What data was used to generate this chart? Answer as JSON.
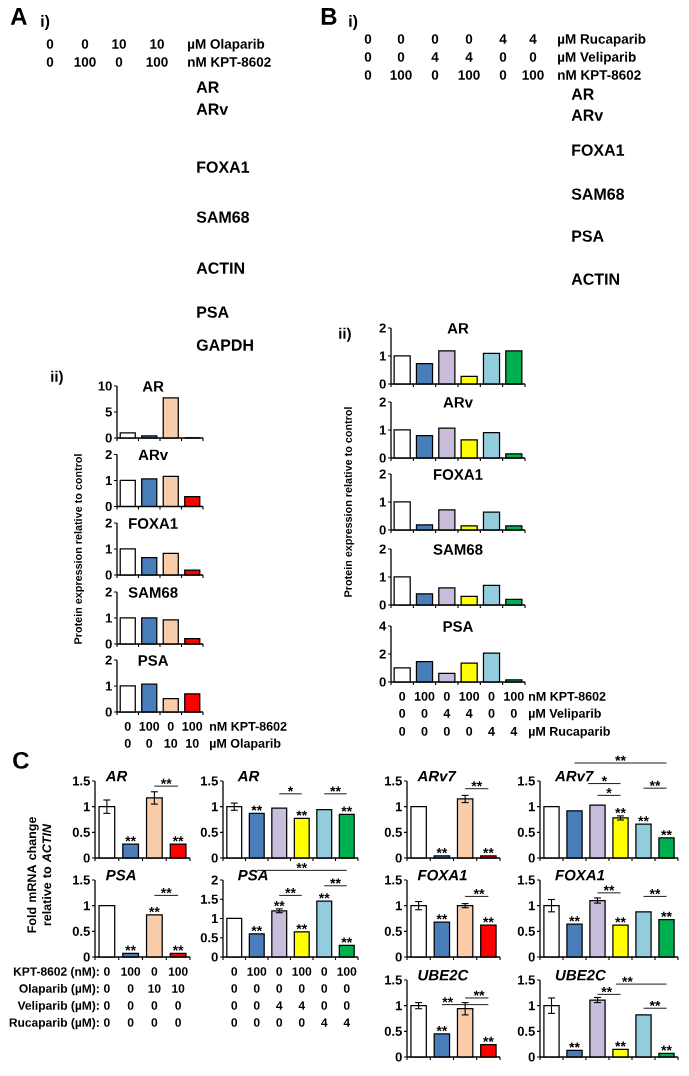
{
  "chart_data": [
    {
      "type": "other",
      "title": "i)",
      "annotations": [
        "A",
        "AR",
        "ARv",
        "FOXA1",
        "SAM68",
        "ACTIN",
        "PSA",
        "GAPDH",
        "µM Olaparib",
        "0",
        "0",
        "10",
        "10",
        "nM KPT-8602",
        "0",
        "100",
        "0",
        "100"
      ]
    },
    {
      "type": "other",
      "title": "i)",
      "annotations": [
        "B",
        "AR",
        "ARv",
        "FOXA1",
        "SAM68",
        "PSA",
        "ACTIN",
        "µM Rucaparib",
        "0",
        "0",
        "0",
        "0",
        "4",
        "4",
        "µM Veliparib",
        "0",
        "0",
        "4",
        "4",
        "0",
        "0",
        "nM KPT-8602",
        "0",
        "100",
        "0",
        "100",
        "0",
        "100"
      ]
    },
    {
      "type": "bar",
      "title": "AR",
      "annotations": [
        "ii)"
      ],
      "categories": [
        null,
        null,
        null,
        null
      ],
      "values": [
        1,
        0.4,
        7.7,
        0
      ],
      "colors": [
        "#ffffff",
        "#4a7ebb",
        "#facdaa",
        "#ff0000"
      ],
      "ylim": [
        0,
        10
      ],
      "yticks": [
        0,
        5,
        10
      ]
    },
    {
      "type": "bar",
      "title": "ARv",
      "categories": [
        null,
        null,
        null,
        null
      ],
      "values": [
        1,
        1.06,
        1.16,
        0.38
      ],
      "colors": [
        "#ffffff",
        "#4a7ebb",
        "#facdaa",
        "#ff0000"
      ],
      "ylim": [
        0,
        2
      ],
      "yticks": [
        0,
        1,
        2
      ]
    },
    {
      "type": "bar",
      "title": "FOXA1",
      "ylabel": "Protein expression relative to control",
      "categories": [
        null,
        null,
        null,
        null
      ],
      "values": [
        1,
        0.67,
        0.83,
        0.19
      ],
      "colors": [
        "#ffffff",
        "#4a7ebb",
        "#facdaa",
        "#ff0000"
      ],
      "ylim": [
        0,
        2
      ],
      "yticks": [
        0,
        1,
        2
      ]
    },
    {
      "type": "bar",
      "title": "SAM68",
      "categories": [
        null,
        null,
        null,
        null
      ],
      "values": [
        1,
        1,
        0.93,
        0.21
      ],
      "colors": [
        "#ffffff",
        "#4a7ebb",
        "#facdaa",
        "#ff0000"
      ],
      "ylim": [
        0,
        2
      ],
      "yticks": [
        0,
        1,
        2
      ]
    },
    {
      "type": "bar",
      "title": "PSA",
      "categories": [
        null,
        null,
        null,
        null
      ],
      "values": [
        1,
        1.07,
        0.51,
        0.7
      ],
      "colors": [
        "#ffffff",
        "#4a7ebb",
        "#facdaa",
        "#ff0000"
      ],
      "ylim": [
        0,
        2
      ],
      "yticks": [
        0,
        1,
        2
      ]
    },
    {
      "type": "other",
      "annotations": [
        "nM KPT-8602",
        "0",
        "100",
        "0",
        "100",
        "µM Olaparib",
        "0",
        "0",
        "10",
        "10"
      ]
    },
    {
      "type": "bar",
      "title": "AR",
      "annotations": [
        "ii)"
      ],
      "categories": [
        null,
        null,
        null,
        null,
        null,
        null
      ],
      "values": [
        1,
        0.73,
        1.18,
        0.27,
        1.09,
        1.18
      ],
      "colors": [
        "#ffffff",
        "#4a7ebb",
        "#c8bedb",
        "#ffff00",
        "#93cddd",
        "#00b050"
      ],
      "ylim": [
        0,
        2
      ],
      "yticks": [
        0,
        1,
        2
      ]
    },
    {
      "type": "bar",
      "title": "ARv",
      "categories": [
        null,
        null,
        null,
        null,
        null,
        null
      ],
      "values": [
        1,
        0.8,
        1.07,
        0.65,
        0.91,
        0.15
      ],
      "colors": [
        "#ffffff",
        "#4a7ebb",
        "#c8bedb",
        "#ffff00",
        "#93cddd",
        "#00b050"
      ],
      "ylim": [
        0,
        2
      ],
      "yticks": [
        0,
        1,
        2
      ]
    },
    {
      "type": "bar",
      "title": "FOXA1",
      "ylabel": "Protein expression relative to control",
      "categories": [
        null,
        null,
        null,
        null,
        null,
        null
      ],
      "values": [
        1,
        0.18,
        0.72,
        0.15,
        0.64,
        0.15
      ],
      "colors": [
        "#ffffff",
        "#4a7ebb",
        "#c8bedb",
        "#ffff00",
        "#93cddd",
        "#00b050"
      ],
      "ylim": [
        0,
        2
      ],
      "yticks": [
        0,
        1,
        2
      ]
    },
    {
      "type": "bar",
      "title": "SAM68",
      "categories": [
        null,
        null,
        null,
        null,
        null,
        null
      ],
      "values": [
        1,
        0.4,
        0.61,
        0.31,
        0.7,
        0.2
      ],
      "colors": [
        "#ffffff",
        "#4a7ebb",
        "#c8bedb",
        "#ffff00",
        "#93cddd",
        "#00b050"
      ],
      "ylim": [
        0,
        2
      ],
      "yticks": [
        0,
        1,
        2
      ]
    },
    {
      "type": "bar",
      "title": "PSA",
      "categories": [
        null,
        null,
        null,
        null,
        null,
        null
      ],
      "values": [
        1,
        1.45,
        0.62,
        1.35,
        2.07,
        0.15
      ],
      "colors": [
        "#ffffff",
        "#4a7ebb",
        "#c8bedb",
        "#ffff00",
        "#93cddd",
        "#00b050"
      ],
      "ylim": [
        0,
        4
      ],
      "yticks": [
        0,
        2,
        4
      ]
    },
    {
      "type": "other",
      "annotations": [
        "nM KPT-8602",
        "0",
        "100",
        "0",
        "100",
        "0",
        "100",
        "µM Veliparib",
        "0",
        "0",
        "4",
        "4",
        "0",
        "0",
        "µM Rucaparib",
        "0",
        "0",
        "0",
        "0",
        "4",
        "4"
      ]
    },
    {
      "type": "bar",
      "title": "AR",
      "ylabel": "Fold mRNA change relative to *ACTIN*",
      "annotations": [
        "C",
        "**"
      ],
      "categories": [
        null,
        null,
        null,
        null
      ],
      "values": [
        1,
        0.27,
        1.17,
        0.27
      ],
      "errors": [
        0.13,
        null,
        0.12,
        null
      ],
      "value_labels": [
        null,
        "**",
        null,
        "**"
      ],
      "colors": [
        "#ffffff",
        "#4a7ebb",
        "#facdaa",
        "#ff0000"
      ],
      "ylim": [
        0,
        1.5
      ],
      "yticks": [
        0,
        0.5,
        1,
        1.5
      ]
    },
    {
      "type": "bar",
      "title": "AR",
      "annotations": [
        "*",
        "**"
      ],
      "categories": [
        null,
        null,
        null,
        null,
        null,
        null
      ],
      "values": [
        1,
        0.87,
        0.97,
        0.77,
        0.94,
        0.85
      ],
      "errors": [
        0.07,
        null,
        null,
        null,
        null,
        null
      ],
      "value_labels": [
        null,
        "**",
        null,
        "**",
        null,
        "**"
      ],
      "colors": [
        "#ffffff",
        "#4a7ebb",
        "#c8bedb",
        "#ffff00",
        "#93cddd",
        "#00b050"
      ],
      "ylim": [
        0,
        1.5
      ],
      "yticks": [
        0,
        0.5,
        1,
        1.5
      ]
    },
    {
      "type": "bar",
      "title": "ARv7",
      "annotations": [
        "**"
      ],
      "categories": [
        null,
        null,
        null,
        null
      ],
      "values": [
        1,
        0.04,
        1.15,
        0.04
      ],
      "errors": [
        null,
        null,
        0.07,
        null
      ],
      "value_labels": [
        null,
        "**",
        null,
        "**"
      ],
      "colors": [
        "#ffffff",
        "#4a7ebb",
        "#facdaa",
        "#ff0000"
      ],
      "ylim": [
        0,
        1.5
      ],
      "yticks": [
        0,
        0.5,
        1,
        1.5
      ]
    },
    {
      "type": "bar",
      "title": "ARv7",
      "annotations": [
        "**",
        "*",
        "*",
        "**"
      ],
      "categories": [
        null,
        null,
        null,
        null,
        null,
        null
      ],
      "values": [
        1,
        0.92,
        1.03,
        0.78,
        0.66,
        0.39
      ],
      "errors": [
        null,
        null,
        null,
        0.04,
        null,
        null
      ],
      "value_labels": [
        null,
        null,
        null,
        "**",
        "**",
        "**"
      ],
      "colors": [
        "#ffffff",
        "#4a7ebb",
        "#c8bedb",
        "#ffff00",
        "#93cddd",
        "#00b050"
      ],
      "ylim": [
        0,
        1.5
      ],
      "yticks": [
        0,
        0.5,
        1,
        1.5
      ]
    },
    {
      "type": "bar",
      "title": "PSA",
      "annotations": [
        "**"
      ],
      "categories": [
        null,
        null,
        null,
        null
      ],
      "values": [
        1,
        0.07,
        0.82,
        0.07
      ],
      "value_labels": [
        null,
        "**",
        "**",
        "**"
      ],
      "colors": [
        "#ffffff",
        "#4a7ebb",
        "#facdaa",
        "#ff0000"
      ],
      "ylim": [
        0,
        1.5
      ],
      "yticks": [
        0,
        0.5,
        1,
        1.5
      ]
    },
    {
      "type": "bar",
      "title": "PSA",
      "annotations": [
        "**",
        "**",
        "**"
      ],
      "categories": [
        null,
        null,
        null,
        null,
        null,
        null
      ],
      "values": [
        1,
        0.6,
        1.2,
        0.65,
        1.45,
        0.3
      ],
      "errors": [
        null,
        null,
        0.05,
        null,
        null,
        null
      ],
      "value_labels": [
        null,
        "**",
        "**",
        "**",
        "**",
        "**"
      ],
      "colors": [
        "#ffffff",
        "#4a7ebb",
        "#c8bedb",
        "#ffff00",
        "#93cddd",
        "#00b050"
      ],
      "ylim": [
        0,
        2
      ],
      "yticks": [
        0,
        0.5,
        1,
        1.5,
        2
      ]
    },
    {
      "type": "bar",
      "title": "FOXA1",
      "annotations": [
        "**"
      ],
      "categories": [
        null,
        null,
        null,
        null
      ],
      "values": [
        1,
        0.68,
        1,
        0.62
      ],
      "errors": [
        0.08,
        null,
        0.04,
        null
      ],
      "value_labels": [
        null,
        "**",
        null,
        "**"
      ],
      "colors": [
        "#ffffff",
        "#4a7ebb",
        "#facdaa",
        "#ff0000"
      ],
      "ylim": [
        0,
        1.5
      ],
      "yticks": [
        0,
        0.5,
        1,
        1.5
      ]
    },
    {
      "type": "bar",
      "title": "FOXA1",
      "annotations": [
        "**",
        "**"
      ],
      "categories": [
        null,
        null,
        null,
        null,
        null,
        null
      ],
      "values": [
        1,
        0.64,
        1.1,
        0.62,
        0.88,
        0.73
      ],
      "errors": [
        0.12,
        null,
        0.05,
        null,
        null,
        null
      ],
      "value_labels": [
        null,
        "**",
        null,
        "**",
        null,
        "**"
      ],
      "colors": [
        "#ffffff",
        "#4a7ebb",
        "#c8bedb",
        "#ffff00",
        "#93cddd",
        "#00b050"
      ],
      "ylim": [
        0,
        1.5
      ],
      "yticks": [
        0,
        0.5,
        1,
        1.5
      ]
    },
    {
      "type": "bar",
      "title": "UBE2C",
      "annotations": [
        "**",
        "**"
      ],
      "categories": [
        null,
        null,
        null,
        null
      ],
      "values": [
        1,
        0.45,
        0.94,
        0.24
      ],
      "errors": [
        0.06,
        null,
        0.12,
        null
      ],
      "value_labels": [
        null,
        "**",
        null,
        "**"
      ],
      "colors": [
        "#ffffff",
        "#4a7ebb",
        "#facdaa",
        "#ff0000"
      ],
      "ylim": [
        0,
        1.5
      ],
      "yticks": [
        0,
        0.5,
        1,
        1.5
      ]
    },
    {
      "type": "bar",
      "title": "UBE2C",
      "annotations": [
        "**",
        "**",
        "**"
      ],
      "categories": [
        null,
        null,
        null,
        null,
        null,
        null
      ],
      "values": [
        1,
        0.13,
        1.11,
        0.15,
        0.82,
        0.07
      ],
      "errors": [
        0.15,
        null,
        0.05,
        null,
        null,
        null
      ],
      "value_labels": [
        null,
        "**",
        null,
        "**",
        null,
        "**"
      ],
      "colors": [
        "#ffffff",
        "#4a7ebb",
        "#c8bedb",
        "#ffff00",
        "#93cddd",
        "#00b050"
      ],
      "ylim": [
        0,
        1.5
      ],
      "yticks": [
        0,
        0.5,
        1,
        1.5
      ]
    },
    {
      "type": "other",
      "annotations": [
        "KPT-8602 (nM):",
        "0",
        "100",
        "0",
        "100",
        "0",
        "100",
        "0",
        "100",
        "0",
        "100",
        "Olaparib (µM):",
        "0",
        "0",
        "10",
        "10",
        "0",
        "0",
        "0",
        "0",
        "0",
        "0",
        "Veliparib (µM):",
        "0",
        "0",
        "0",
        "0",
        "0",
        "0",
        "4",
        "4",
        "0",
        "0",
        "Rucaparib (µM):",
        "0",
        "0",
        "0",
        "0",
        "0",
        "0",
        "0",
        "0",
        "4",
        "4"
      ]
    }
  ]
}
